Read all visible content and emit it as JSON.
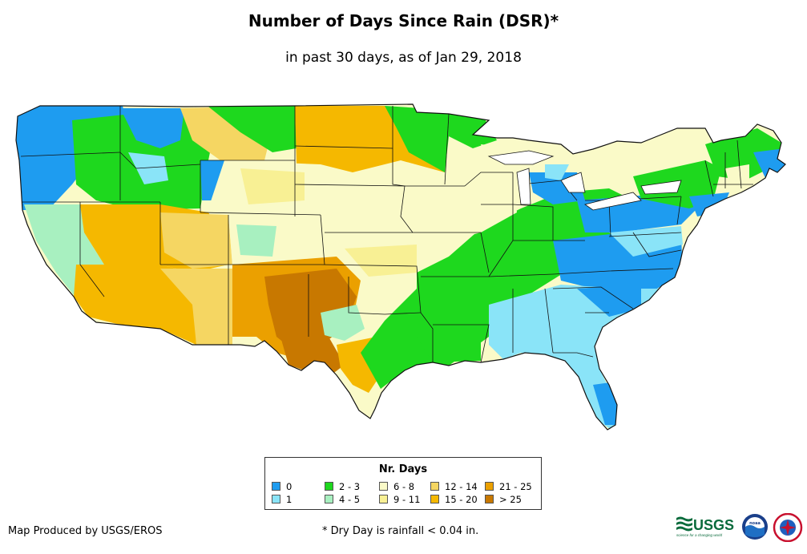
{
  "title": "Number of Days Since Rain (DSR)*",
  "subtitle": "in past 30 days, as of Jan 29, 2018",
  "legend": {
    "title": "Nr. Days",
    "items": [
      {
        "label": "0",
        "color": "#1e9cf0"
      },
      {
        "label": "1",
        "color": "#8ae4f8"
      },
      {
        "label": "2 - 3",
        "color": "#1ed81e"
      },
      {
        "label": "4 - 5",
        "color": "#a8f0c0"
      },
      {
        "label": "6 - 8",
        "color": "#fafac8"
      },
      {
        "label": "9 - 11",
        "color": "#f8f094"
      },
      {
        "label": "12 - 14",
        "color": "#f5d662"
      },
      {
        "label": "15 - 20",
        "color": "#f5b800"
      },
      {
        "label": "21 - 25",
        "color": "#eba000"
      },
      {
        "label": "> 25",
        "color": "#c87800"
      }
    ]
  },
  "footer": {
    "credit": "Map Produced by USGS/EROS",
    "note": "* Dry Day is rainfall < 0.04 in."
  },
  "logos": {
    "usgs": "USGS",
    "usgs_tagline": "science for a changing world",
    "noaa": "noaa"
  }
}
